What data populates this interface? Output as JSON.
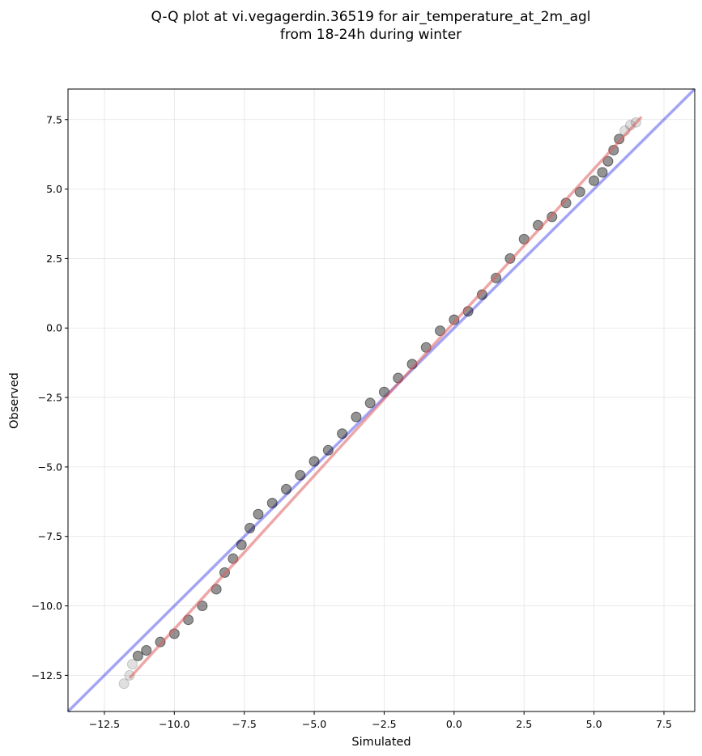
{
  "chart_data": {
    "type": "scatter",
    "title": "Q-Q plot at vi.vegagerdin.36519 for air_temperature_at_2m_agl",
    "subtitle": "from 18-24h during winter",
    "xlabel": "Simulated",
    "ylabel": "Observed",
    "xlim": [
      -13.8,
      8.6
    ],
    "ylim": [
      -13.8,
      8.6
    ],
    "xticks": [
      -12.5,
      -10.0,
      -7.5,
      -5.0,
      -2.5,
      0.0,
      2.5,
      5.0,
      7.5
    ],
    "yticks": [
      -12.5,
      -10.0,
      -7.5,
      -5.0,
      -2.5,
      0.0,
      2.5,
      5.0,
      7.5
    ],
    "xtick_labels": [
      "−12.5",
      "−10.0",
      "−7.5",
      "−5.0",
      "−2.5",
      "0.0",
      "2.5",
      "5.0",
      "7.5"
    ],
    "ytick_labels": [
      "−12.5",
      "−10.0",
      "−7.5",
      "−5.0",
      "−2.5",
      "0.0",
      "2.5",
      "5.0",
      "7.5"
    ],
    "grid": true,
    "reference_line": {
      "x": [
        -13.8,
        8.6
      ],
      "y": [
        -13.8,
        8.6
      ]
    },
    "fit_line": {
      "x": [
        -11.6,
        6.7
      ],
      "y": [
        -12.6,
        7.6
      ]
    },
    "quantiles": {
      "x": [
        -11.8,
        -11.6,
        -11.5,
        -11.3,
        -11.0,
        -10.5,
        -10.0,
        -9.5,
        -9.0,
        -8.5,
        -8.2,
        -7.9,
        -7.6,
        -7.3,
        -7.0,
        -6.5,
        -6.0,
        -5.5,
        -5.0,
        -4.5,
        -4.0,
        -3.5,
        -3.0,
        -2.5,
        -2.0,
        -1.5,
        -1.0,
        -0.5,
        0.0,
        0.5,
        1.0,
        1.5,
        2.0,
        2.5,
        3.0,
        3.5,
        4.0,
        4.5,
        5.0,
        5.3,
        5.5,
        5.7,
        5.9,
        6.1,
        6.3,
        6.5
      ],
      "y": [
        -12.8,
        -12.5,
        -12.1,
        -11.8,
        -11.6,
        -11.3,
        -11.0,
        -10.5,
        -10.0,
        -9.4,
        -8.8,
        -8.3,
        -7.8,
        -7.2,
        -6.7,
        -6.3,
        -5.8,
        -5.3,
        -4.8,
        -4.4,
        -3.8,
        -3.2,
        -2.7,
        -2.3,
        -1.8,
        -1.3,
        -0.7,
        -0.1,
        0.3,
        0.6,
        1.2,
        1.8,
        2.5,
        3.2,
        3.7,
        4.0,
        4.5,
        4.9,
        5.3,
        5.6,
        6.0,
        6.4,
        6.8,
        7.1,
        7.3,
        7.4
      ]
    },
    "colors": {
      "points": "#000000",
      "reference_line": "#5a5af0",
      "fit_line": "#e06060",
      "grid": "#d9d9d9"
    }
  }
}
